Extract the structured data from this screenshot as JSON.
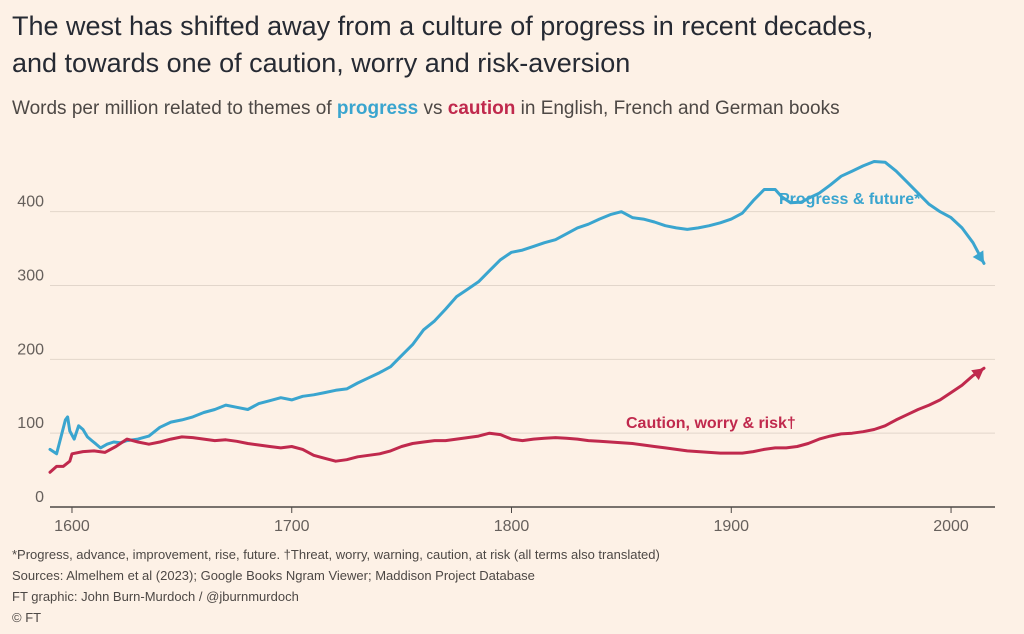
{
  "title_line1": "The west has shifted away from a culture of progress in recent decades,",
  "title_line2": "and towards one of caution, worry and risk-aversion",
  "subtitle": {
    "prefix": "Words per million related to themes of ",
    "kw1": "progress",
    "mid": " vs ",
    "kw2": "caution",
    "suffix": " in English, French and German books"
  },
  "footnotes": {
    "definitions": "*Progress, advance, improvement, rise, future. †Threat, worry, warning, caution, at risk (all terms also translated)",
    "sources": "Sources: Almelhem et al (2023); Google Books Ngram Viewer; Maddison Project Database",
    "credit": "FT graphic: John Burn-Murdoch / @jburnmurdoch",
    "copyright": "© FT"
  },
  "colors": {
    "progress": "#3aa5cf",
    "caution": "#c0294d",
    "background": "#fdf1e6",
    "grid": "#e2d6cb"
  },
  "chart_data": {
    "type": "line",
    "xlim": [
      1590,
      2020
    ],
    "ylim": [
      0,
      470
    ],
    "x_ticks": [
      1600,
      1700,
      1800,
      1900,
      2000
    ],
    "y_ticks": [
      0,
      100,
      200,
      300,
      400
    ],
    "grid": true,
    "series": [
      {
        "name": "Progress & future*",
        "color": "#3aa5cf",
        "points": [
          [
            1590,
            78
          ],
          [
            1593,
            72
          ],
          [
            1595,
            95
          ],
          [
            1597,
            118
          ],
          [
            1598,
            122
          ],
          [
            1599,
            103
          ],
          [
            1601,
            92
          ],
          [
            1603,
            110
          ],
          [
            1605,
            105
          ],
          [
            1607,
            95
          ],
          [
            1609,
            90
          ],
          [
            1611,
            85
          ],
          [
            1613,
            80
          ],
          [
            1616,
            85
          ],
          [
            1619,
            88
          ],
          [
            1622,
            87
          ],
          [
            1625,
            90
          ],
          [
            1630,
            92
          ],
          [
            1635,
            96
          ],
          [
            1640,
            108
          ],
          [
            1645,
            115
          ],
          [
            1650,
            118
          ],
          [
            1655,
            122
          ],
          [
            1660,
            128
          ],
          [
            1665,
            132
          ],
          [
            1670,
            138
          ],
          [
            1675,
            135
          ],
          [
            1680,
            132
          ],
          [
            1685,
            140
          ],
          [
            1690,
            144
          ],
          [
            1695,
            148
          ],
          [
            1700,
            145
          ],
          [
            1705,
            150
          ],
          [
            1710,
            152
          ],
          [
            1715,
            155
          ],
          [
            1720,
            158
          ],
          [
            1725,
            160
          ],
          [
            1730,
            168
          ],
          [
            1735,
            175
          ],
          [
            1740,
            182
          ],
          [
            1745,
            190
          ],
          [
            1750,
            205
          ],
          [
            1755,
            220
          ],
          [
            1760,
            240
          ],
          [
            1765,
            252
          ],
          [
            1770,
            268
          ],
          [
            1775,
            285
          ],
          [
            1780,
            295
          ],
          [
            1785,
            305
          ],
          [
            1790,
            320
          ],
          [
            1795,
            335
          ],
          [
            1800,
            345
          ],
          [
            1805,
            348
          ],
          [
            1810,
            353
          ],
          [
            1815,
            358
          ],
          [
            1820,
            362
          ],
          [
            1825,
            370
          ],
          [
            1830,
            378
          ],
          [
            1835,
            383
          ],
          [
            1840,
            390
          ],
          [
            1845,
            396
          ],
          [
            1850,
            400
          ],
          [
            1855,
            392
          ],
          [
            1860,
            390
          ],
          [
            1865,
            386
          ],
          [
            1870,
            381
          ],
          [
            1875,
            378
          ],
          [
            1880,
            376
          ],
          [
            1885,
            378
          ],
          [
            1890,
            381
          ],
          [
            1895,
            385
          ],
          [
            1900,
            390
          ],
          [
            1905,
            398
          ],
          [
            1910,
            415
          ],
          [
            1915,
            430
          ],
          [
            1920,
            430
          ],
          [
            1923,
            420
          ],
          [
            1927,
            412
          ],
          [
            1932,
            413
          ],
          [
            1935,
            418
          ],
          [
            1940,
            425
          ],
          [
            1945,
            436
          ],
          [
            1950,
            448
          ],
          [
            1955,
            455
          ],
          [
            1960,
            462
          ],
          [
            1965,
            468
          ],
          [
            1970,
            467
          ],
          [
            1975,
            455
          ],
          [
            1980,
            440
          ],
          [
            1985,
            425
          ],
          [
            1990,
            410
          ],
          [
            1995,
            400
          ],
          [
            2000,
            392
          ],
          [
            2005,
            378
          ],
          [
            2010,
            358
          ],
          [
            2015,
            330
          ]
        ],
        "label_text": "Progress & future*"
      },
      {
        "name": "Caution, worry & risk†",
        "color": "#c0294d",
        "points": [
          [
            1590,
            47
          ],
          [
            1593,
            55
          ],
          [
            1596,
            55
          ],
          [
            1599,
            62
          ],
          [
            1600,
            72
          ],
          [
            1605,
            75
          ],
          [
            1610,
            76
          ],
          [
            1615,
            74
          ],
          [
            1620,
            82
          ],
          [
            1625,
            92
          ],
          [
            1630,
            88
          ],
          [
            1635,
            85
          ],
          [
            1640,
            88
          ],
          [
            1645,
            92
          ],
          [
            1650,
            95
          ],
          [
            1655,
            94
          ],
          [
            1660,
            92
          ],
          [
            1665,
            90
          ],
          [
            1670,
            91
          ],
          [
            1675,
            89
          ],
          [
            1680,
            86
          ],
          [
            1685,
            84
          ],
          [
            1690,
            82
          ],
          [
            1695,
            80
          ],
          [
            1700,
            82
          ],
          [
            1705,
            78
          ],
          [
            1710,
            70
          ],
          [
            1715,
            66
          ],
          [
            1720,
            62
          ],
          [
            1725,
            64
          ],
          [
            1730,
            68
          ],
          [
            1735,
            70
          ],
          [
            1740,
            72
          ],
          [
            1745,
            76
          ],
          [
            1750,
            82
          ],
          [
            1755,
            86
          ],
          [
            1760,
            88
          ],
          [
            1765,
            90
          ],
          [
            1770,
            90
          ],
          [
            1775,
            92
          ],
          [
            1780,
            94
          ],
          [
            1785,
            96
          ],
          [
            1790,
            100
          ],
          [
            1795,
            98
          ],
          [
            1800,
            92
          ],
          [
            1805,
            90
          ],
          [
            1810,
            92
          ],
          [
            1815,
            93
          ],
          [
            1820,
            94
          ],
          [
            1825,
            93
          ],
          [
            1830,
            92
          ],
          [
            1835,
            90
          ],
          [
            1840,
            89
          ],
          [
            1845,
            88
          ],
          [
            1850,
            87
          ],
          [
            1855,
            86
          ],
          [
            1860,
            84
          ],
          [
            1865,
            82
          ],
          [
            1870,
            80
          ],
          [
            1875,
            78
          ],
          [
            1880,
            76
          ],
          [
            1885,
            75
          ],
          [
            1890,
            74
          ],
          [
            1895,
            73
          ],
          [
            1900,
            73
          ],
          [
            1905,
            73
          ],
          [
            1910,
            75
          ],
          [
            1915,
            78
          ],
          [
            1920,
            80
          ],
          [
            1925,
            80
          ],
          [
            1930,
            82
          ],
          [
            1935,
            86
          ],
          [
            1940,
            92
          ],
          [
            1945,
            96
          ],
          [
            1950,
            99
          ],
          [
            1955,
            100
          ],
          [
            1960,
            102
          ],
          [
            1965,
            105
          ],
          [
            1970,
            110
          ],
          [
            1975,
            118
          ],
          [
            1980,
            125
          ],
          [
            1985,
            132
          ],
          [
            1990,
            138
          ],
          [
            1995,
            145
          ],
          [
            2000,
            155
          ],
          [
            2005,
            165
          ],
          [
            2010,
            178
          ],
          [
            2015,
            188
          ]
        ],
        "label_text": "Caution, worry & risk†"
      }
    ]
  }
}
